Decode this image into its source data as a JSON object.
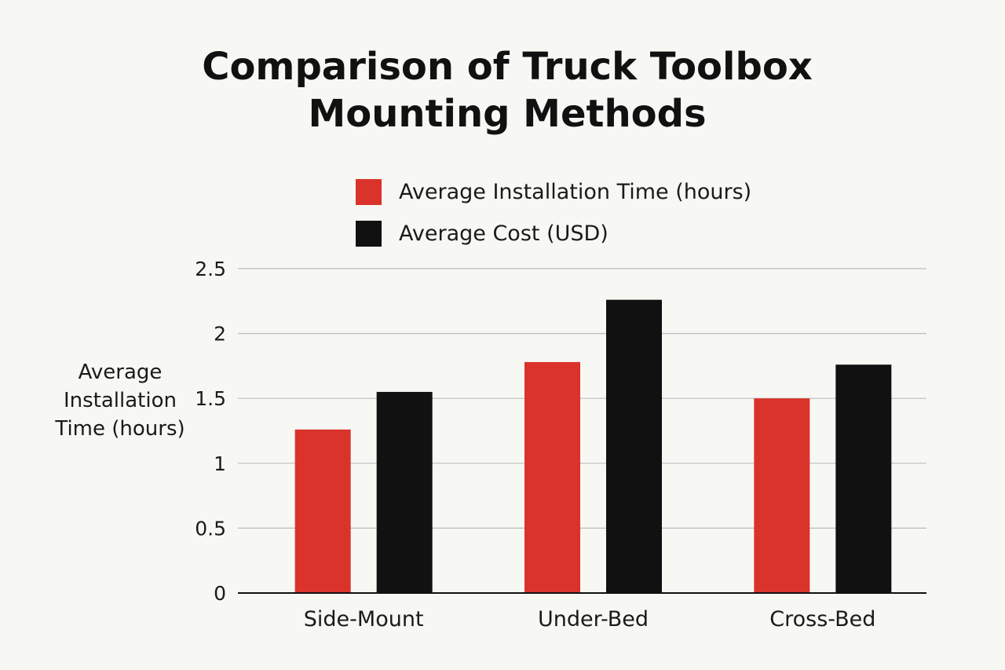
{
  "chart_data": {
    "type": "bar",
    "title": "Comparison of Truck Toolbox\nMounting Methods",
    "xlabel": "",
    "ylabel": "Average\nInstallation\nTime (hours)",
    "categories": [
      "Side-Mount",
      "Under-Bed",
      "Cross-Bed"
    ],
    "series": [
      {
        "name": "Average Installation Time (hours)",
        "color": "#d9332b",
        "values": [
          1.26,
          1.78,
          1.5
        ]
      },
      {
        "name": "Average Cost (USD)",
        "color": "#111111",
        "values": [
          1.55,
          2.26,
          1.76
        ]
      }
    ],
    "ylim": [
      0,
      2.5
    ],
    "yticks": [
      "0",
      "0.5",
      "1",
      "1.5",
      "2",
      "2.5"
    ],
    "grid": true,
    "legend_position": "top"
  }
}
